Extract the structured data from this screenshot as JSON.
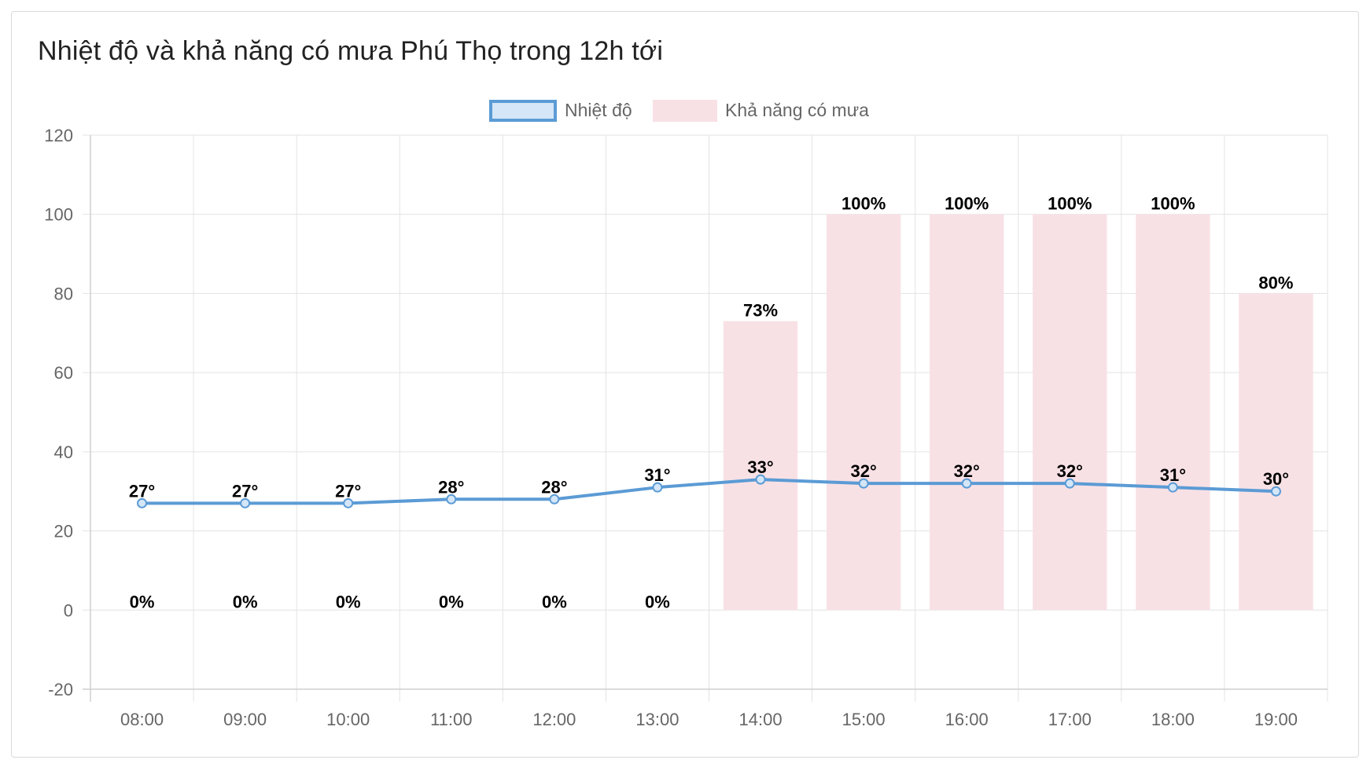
{
  "page": {
    "title": "Nhiệt độ và khả năng có mưa Phú Thọ trong 12h tới"
  },
  "colors": {
    "line": "#5b9bd5",
    "line_fill": "#d4e6f7",
    "bar": "#f8e1e5",
    "grid": "#e3e3e3",
    "axis_text": "#666666",
    "label_text": "#000000"
  },
  "chart_data": {
    "type": "bar",
    "title": "",
    "xlabel": "",
    "ylabel": "",
    "ylim": [
      -20,
      120
    ],
    "yticks": [
      -20,
      0,
      20,
      40,
      60,
      80,
      100,
      120
    ],
    "grid": true,
    "legend_position": "top-center",
    "categories": [
      "08:00",
      "09:00",
      "10:00",
      "11:00",
      "12:00",
      "13:00",
      "14:00",
      "15:00",
      "16:00",
      "17:00",
      "18:00",
      "19:00"
    ],
    "series": [
      {
        "name": "Nhiệt độ",
        "type": "line",
        "values": [
          27,
          27,
          27,
          28,
          28,
          31,
          33,
          32,
          32,
          32,
          31,
          30
        ],
        "labels": [
          "27°",
          "27°",
          "27°",
          "28°",
          "28°",
          "31°",
          "33°",
          "32°",
          "32°",
          "32°",
          "31°",
          "30°"
        ]
      },
      {
        "name": "Khả năng có mưa",
        "type": "bar",
        "values": [
          0,
          0,
          0,
          0,
          0,
          0,
          73,
          100,
          100,
          100,
          100,
          80
        ],
        "labels": [
          "0%",
          "0%",
          "0%",
          "0%",
          "0%",
          "0%",
          "73%",
          "100%",
          "100%",
          "100%",
          "100%",
          "80%"
        ]
      }
    ]
  }
}
